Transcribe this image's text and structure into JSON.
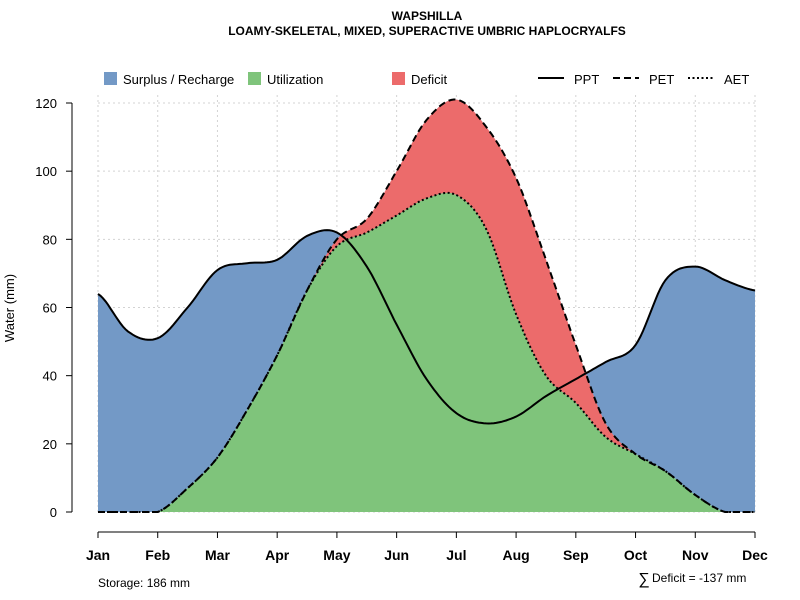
{
  "chart_data": {
    "type": "area",
    "title": "WAPSHILLA",
    "subtitle": "LOAMY-SKELETAL, MIXED, SUPERACTIVE UMBRIC HAPLOCRYALFS",
    "xlabel": "",
    "ylabel": "Water (mm)",
    "ylim": [
      0,
      120
    ],
    "yticks": [
      0,
      20,
      40,
      60,
      80,
      100,
      120
    ],
    "categories": [
      "Jan",
      "Feb",
      "Mar",
      "Apr",
      "May",
      "Jun",
      "Jul",
      "Aug",
      "Sep",
      "Oct",
      "Nov",
      "Dec"
    ],
    "x": [
      0,
      0.5,
      1,
      1.5,
      2,
      2.5,
      3,
      3.5,
      4,
      4.5,
      5,
      5.5,
      6,
      6.5,
      7,
      7.5,
      8,
      8.5,
      9,
      9.5,
      10,
      10.5,
      11
    ],
    "series": [
      {
        "name": "PPT",
        "line": "solid",
        "values": [
          64,
          53,
          51,
          60,
          71,
          73,
          74,
          81,
          82,
          72,
          55,
          39,
          29,
          26,
          28,
          34,
          39,
          44,
          49,
          68,
          72,
          68,
          65
        ]
      },
      {
        "name": "PET",
        "line": "dashed",
        "values": [
          0,
          0,
          0,
          7,
          16,
          30,
          46,
          65,
          80,
          86,
          100,
          115,
          121,
          113,
          98,
          74,
          49,
          26,
          17,
          12,
          5,
          0,
          0
        ]
      },
      {
        "name": "AET",
        "line": "dotted",
        "values": [
          0,
          0,
          0,
          7,
          16,
          30,
          46,
          65,
          78,
          82,
          87,
          92,
          93,
          83,
          58,
          40,
          32,
          22,
          17,
          12,
          5,
          0,
          0
        ]
      }
    ],
    "areas": [
      {
        "name": "Surplus / Recharge",
        "color": "#7399c6"
      },
      {
        "name": "Utilization",
        "color": "#7fc47b"
      },
      {
        "name": "Deficit",
        "color": "#ec6b6b"
      }
    ],
    "legend_position": "top",
    "grid": true
  },
  "footer": {
    "storage": "Storage: 186 mm",
    "deficit_symbol": "∑",
    "deficit": "Deficit = -137 mm"
  }
}
